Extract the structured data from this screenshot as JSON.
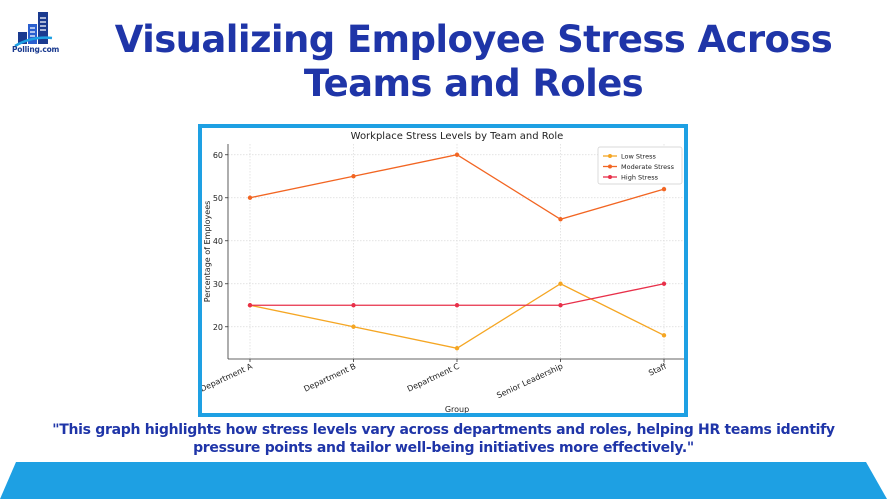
{
  "brand": {
    "logo_text": "Polling.com"
  },
  "page": {
    "title": "Visualizing Employee Stress Across Teams and Roles",
    "quote": "\"This graph highlights how stress levels vary across departments and roles, helping HR teams identify pressure points and tailor well-being initiatives more effectively.\""
  },
  "colors": {
    "title": "#1f35a8",
    "accent": "#1ea0e3",
    "frame": "#1ea0e3"
  },
  "chart_data": {
    "type": "line",
    "title": "Workplace Stress Levels by Team and Role",
    "xlabel": "Group",
    "ylabel": "Percentage of Employees",
    "categories": [
      "Department A",
      "Department B",
      "Department C",
      "Senior Leadership",
      "Staff"
    ],
    "ylim": [
      12.5,
      62.5
    ],
    "yticks": [
      20,
      30,
      40,
      50,
      60
    ],
    "grid": true,
    "legend_position": "top-right",
    "series": [
      {
        "name": "Low Stress",
        "color": "#f5a623",
        "values": [
          25,
          20,
          15,
          30,
          18
        ]
      },
      {
        "name": "Moderate Stress",
        "color": "#f26522",
        "values": [
          50,
          55,
          60,
          45,
          52
        ]
      },
      {
        "name": "High Stress",
        "color": "#e8304a",
        "values": [
          25,
          25,
          25,
          25,
          30
        ]
      }
    ]
  }
}
